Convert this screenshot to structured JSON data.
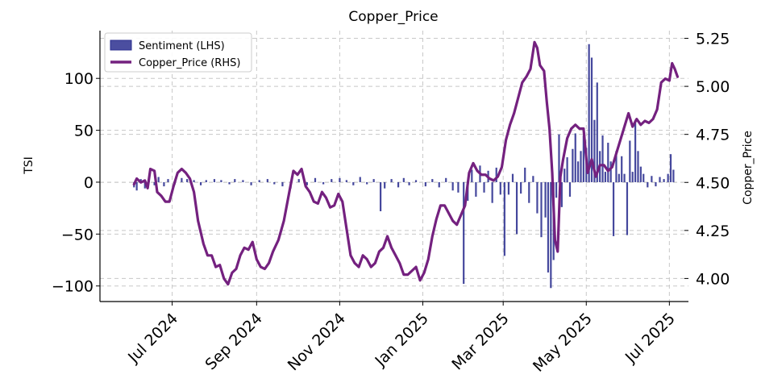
{
  "chart_data": {
    "type": "bar+line",
    "title": "Copper_Price",
    "ylabel_left": "TSI",
    "ylabel_right": "Copper_Price",
    "x_ticks": [
      "Jul 2024",
      "Sep 2024",
      "Nov 2024",
      "Jan 2025",
      "Mar 2025",
      "May 2025",
      "Jul 2025"
    ],
    "x_tick_dates": [
      "2024-07-01",
      "2024-09-01",
      "2024-11-01",
      "2025-01-01",
      "2025-03-01",
      "2025-05-01",
      "2025-07-01"
    ],
    "x_range": [
      "2024-05-09",
      "2025-07-15"
    ],
    "y_left_ticks": [
      100,
      50,
      0,
      -50,
      -100
    ],
    "y_left_tick_labels": [
      "100",
      "50",
      "0",
      "−50",
      "−100"
    ],
    "y_left_range": [
      -115,
      146
    ],
    "y_right_ticks": [
      5.25,
      5.0,
      4.75,
      4.5,
      4.25,
      4.0
    ],
    "y_right_tick_labels": [
      "5.25",
      "5.00",
      "4.75",
      "4.50",
      "4.25",
      "4.00"
    ],
    "y_right_range": [
      3.88,
      5.29
    ],
    "grid": true,
    "legend_position": "top-left",
    "colors": {
      "sentiment": "#2b2f8f",
      "copper": "#74217f",
      "grid": "#c8c8c8"
    },
    "series": [
      {
        "name": "Sentiment (LHS)",
        "kind": "bar",
        "axis": "left",
        "points": [
          [
            "2024-06-03",
            -5
          ],
          [
            "2024-06-05",
            -8
          ],
          [
            "2024-06-08",
            3
          ],
          [
            "2024-06-11",
            -6
          ],
          [
            "2024-06-14",
            4
          ],
          [
            "2024-06-18",
            -3
          ],
          [
            "2024-06-21",
            5
          ],
          [
            "2024-06-25",
            -4
          ],
          [
            "2024-06-28",
            3
          ],
          [
            "2024-07-03",
            -2
          ],
          [
            "2024-07-08",
            4
          ],
          [
            "2024-07-12",
            3
          ],
          [
            "2024-07-17",
            2
          ],
          [
            "2024-07-22",
            -3
          ],
          [
            "2024-07-26",
            2
          ],
          [
            "2024-08-01",
            3
          ],
          [
            "2024-08-06",
            2
          ],
          [
            "2024-08-12",
            -2
          ],
          [
            "2024-08-16",
            3
          ],
          [
            "2024-08-22",
            2
          ],
          [
            "2024-08-28",
            -3
          ],
          [
            "2024-09-03",
            2
          ],
          [
            "2024-09-09",
            3
          ],
          [
            "2024-09-14",
            -2
          ],
          [
            "2024-09-20",
            -4
          ],
          [
            "2024-09-26",
            -6
          ],
          [
            "2024-10-02",
            3
          ],
          [
            "2024-10-08",
            -3
          ],
          [
            "2024-10-14",
            4
          ],
          [
            "2024-10-20",
            -2
          ],
          [
            "2024-10-26",
            3
          ],
          [
            "2024-11-01",
            4
          ],
          [
            "2024-11-06",
            2
          ],
          [
            "2024-11-11",
            -3
          ],
          [
            "2024-11-16",
            5
          ],
          [
            "2024-11-21",
            -2
          ],
          [
            "2024-11-26",
            3
          ],
          [
            "2024-12-01",
            -28
          ],
          [
            "2024-12-04",
            -6
          ],
          [
            "2024-12-09",
            3
          ],
          [
            "2024-12-14",
            -5
          ],
          [
            "2024-12-18",
            4
          ],
          [
            "2024-12-22",
            -3
          ],
          [
            "2024-12-27",
            2
          ],
          [
            "2025-01-03",
            -4
          ],
          [
            "2025-01-08",
            3
          ],
          [
            "2025-01-13",
            -5
          ],
          [
            "2025-01-18",
            4
          ],
          [
            "2025-01-23",
            -8
          ],
          [
            "2025-01-27",
            -10
          ],
          [
            "2025-01-31",
            -98
          ],
          [
            "2025-02-03",
            -18
          ],
          [
            "2025-02-06",
            12
          ],
          [
            "2025-02-09",
            -14
          ],
          [
            "2025-02-12",
            16
          ],
          [
            "2025-02-15",
            -10
          ],
          [
            "2025-02-18",
            11
          ],
          [
            "2025-02-21",
            -20
          ],
          [
            "2025-02-24",
            14
          ],
          [
            "2025-02-27",
            -12
          ],
          [
            "2025-03-02",
            -71
          ],
          [
            "2025-03-05",
            -12
          ],
          [
            "2025-03-08",
            8
          ],
          [
            "2025-03-11",
            -50
          ],
          [
            "2025-03-14",
            -11
          ],
          [
            "2025-03-17",
            14
          ],
          [
            "2025-03-20",
            -20
          ],
          [
            "2025-03-23",
            6
          ],
          [
            "2025-03-26",
            -30
          ],
          [
            "2025-03-29",
            -53
          ],
          [
            "2025-04-01",
            -34
          ],
          [
            "2025-04-03",
            -87
          ],
          [
            "2025-04-05",
            -102
          ],
          [
            "2025-04-07",
            -75
          ],
          [
            "2025-04-09",
            -15
          ],
          [
            "2025-04-11",
            46
          ],
          [
            "2025-04-13",
            -24
          ],
          [
            "2025-04-15",
            13
          ],
          [
            "2025-04-17",
            24
          ],
          [
            "2025-04-19",
            -14
          ],
          [
            "2025-04-21",
            32
          ],
          [
            "2025-04-23",
            47
          ],
          [
            "2025-04-25",
            20
          ],
          [
            "2025-04-27",
            30
          ],
          [
            "2025-04-29",
            45
          ],
          [
            "2025-05-01",
            33
          ],
          [
            "2025-05-03",
            133
          ],
          [
            "2025-05-05",
            120
          ],
          [
            "2025-05-07",
            60
          ],
          [
            "2025-05-09",
            96
          ],
          [
            "2025-05-11",
            30
          ],
          [
            "2025-05-13",
            45
          ],
          [
            "2025-05-15",
            10
          ],
          [
            "2025-05-17",
            38
          ],
          [
            "2025-05-19",
            20
          ],
          [
            "2025-05-21",
            -52
          ],
          [
            "2025-05-23",
            30
          ],
          [
            "2025-05-25",
            8
          ],
          [
            "2025-05-27",
            25
          ],
          [
            "2025-05-29",
            8
          ],
          [
            "2025-05-31",
            -51
          ],
          [
            "2025-06-02",
            40
          ],
          [
            "2025-06-04",
            10
          ],
          [
            "2025-06-06",
            60
          ],
          [
            "2025-06-08",
            30
          ],
          [
            "2025-06-10",
            15
          ],
          [
            "2025-06-12",
            8
          ],
          [
            "2025-06-15",
            -5
          ],
          [
            "2025-06-18",
            6
          ],
          [
            "2025-06-21",
            -4
          ],
          [
            "2025-06-24",
            5
          ],
          [
            "2025-06-27",
            3
          ],
          [
            "2025-06-30",
            8
          ],
          [
            "2025-07-02",
            27
          ],
          [
            "2025-07-04",
            12
          ]
        ]
      },
      {
        "name": "Copper_Price (RHS)",
        "kind": "line",
        "axis": "right",
        "points": [
          [
            "2024-06-03",
            4.49
          ],
          [
            "2024-06-05",
            4.52
          ],
          [
            "2024-06-08",
            4.5
          ],
          [
            "2024-06-11",
            4.51
          ],
          [
            "2024-06-13",
            4.47
          ],
          [
            "2024-06-15",
            4.57
          ],
          [
            "2024-06-18",
            4.56
          ],
          [
            "2024-06-20",
            4.45
          ],
          [
            "2024-06-23",
            4.43
          ],
          [
            "2024-06-26",
            4.4
          ],
          [
            "2024-06-29",
            4.4
          ],
          [
            "2024-07-02",
            4.48
          ],
          [
            "2024-07-05",
            4.55
          ],
          [
            "2024-07-08",
            4.57
          ],
          [
            "2024-07-11",
            4.55
          ],
          [
            "2024-07-14",
            4.52
          ],
          [
            "2024-07-17",
            4.45
          ],
          [
            "2024-07-20",
            4.3
          ],
          [
            "2024-07-24",
            4.18
          ],
          [
            "2024-07-27",
            4.12
          ],
          [
            "2024-07-30",
            4.12
          ],
          [
            "2024-08-02",
            4.06
          ],
          [
            "2024-08-05",
            4.07
          ],
          [
            "2024-08-08",
            4.0
          ],
          [
            "2024-08-11",
            3.97
          ],
          [
            "2024-08-14",
            4.03
          ],
          [
            "2024-08-17",
            4.05
          ],
          [
            "2024-08-20",
            4.12
          ],
          [
            "2024-08-23",
            4.16
          ],
          [
            "2024-08-26",
            4.15
          ],
          [
            "2024-08-29",
            4.19
          ],
          [
            "2024-09-01",
            4.1
          ],
          [
            "2024-09-04",
            4.06
          ],
          [
            "2024-09-07",
            4.05
          ],
          [
            "2024-09-10",
            4.08
          ],
          [
            "2024-09-13",
            4.14
          ],
          [
            "2024-09-17",
            4.2
          ],
          [
            "2024-09-21",
            4.3
          ],
          [
            "2024-09-25",
            4.45
          ],
          [
            "2024-09-28",
            4.56
          ],
          [
            "2024-10-01",
            4.54
          ],
          [
            "2024-10-04",
            4.57
          ],
          [
            "2024-10-07",
            4.48
          ],
          [
            "2024-10-10",
            4.45
          ],
          [
            "2024-10-13",
            4.4
          ],
          [
            "2024-10-16",
            4.39
          ],
          [
            "2024-10-19",
            4.45
          ],
          [
            "2024-10-22",
            4.42
          ],
          [
            "2024-10-25",
            4.37
          ],
          [
            "2024-10-28",
            4.38
          ],
          [
            "2024-10-31",
            4.44
          ],
          [
            "2024-11-03",
            4.4
          ],
          [
            "2024-11-06",
            4.26
          ],
          [
            "2024-11-09",
            4.12
          ],
          [
            "2024-11-12",
            4.08
          ],
          [
            "2024-11-15",
            4.06
          ],
          [
            "2024-11-18",
            4.12
          ],
          [
            "2024-11-21",
            4.1
          ],
          [
            "2024-11-24",
            4.06
          ],
          [
            "2024-11-27",
            4.08
          ],
          [
            "2024-11-30",
            4.14
          ],
          [
            "2024-12-03",
            4.16
          ],
          [
            "2024-12-06",
            4.22
          ],
          [
            "2024-12-09",
            4.16
          ],
          [
            "2024-12-12",
            4.12
          ],
          [
            "2024-12-15",
            4.08
          ],
          [
            "2024-12-18",
            4.02
          ],
          [
            "2024-12-21",
            4.02
          ],
          [
            "2024-12-24",
            4.04
          ],
          [
            "2024-12-27",
            4.06
          ],
          [
            "2024-12-30",
            3.99
          ],
          [
            "2025-01-02",
            4.03
          ],
          [
            "2025-01-05",
            4.1
          ],
          [
            "2025-01-08",
            4.22
          ],
          [
            "2025-01-11",
            4.31
          ],
          [
            "2025-01-14",
            4.38
          ],
          [
            "2025-01-17",
            4.38
          ],
          [
            "2025-01-20",
            4.34
          ],
          [
            "2025-01-23",
            4.3
          ],
          [
            "2025-01-26",
            4.28
          ],
          [
            "2025-01-29",
            4.33
          ],
          [
            "2025-02-01",
            4.38
          ],
          [
            "2025-02-04",
            4.55
          ],
          [
            "2025-02-07",
            4.6
          ],
          [
            "2025-02-10",
            4.56
          ],
          [
            "2025-02-13",
            4.54
          ],
          [
            "2025-02-16",
            4.54
          ],
          [
            "2025-02-19",
            4.52
          ],
          [
            "2025-02-22",
            4.51
          ],
          [
            "2025-02-25",
            4.53
          ],
          [
            "2025-02-28",
            4.58
          ],
          [
            "2025-03-03",
            4.72
          ],
          [
            "2025-03-06",
            4.8
          ],
          [
            "2025-03-09",
            4.86
          ],
          [
            "2025-03-12",
            4.94
          ],
          [
            "2025-03-15",
            5.02
          ],
          [
            "2025-03-18",
            5.05
          ],
          [
            "2025-03-21",
            5.09
          ],
          [
            "2025-03-24",
            5.23
          ],
          [
            "2025-03-26",
            5.2
          ],
          [
            "2025-03-28",
            5.11
          ],
          [
            "2025-03-31",
            5.08
          ],
          [
            "2025-04-02",
            4.92
          ],
          [
            "2025-04-04",
            4.78
          ],
          [
            "2025-04-06",
            4.55
          ],
          [
            "2025-04-08",
            4.2
          ],
          [
            "2025-04-10",
            4.14
          ],
          [
            "2025-04-12",
            4.53
          ],
          [
            "2025-04-14",
            4.62
          ],
          [
            "2025-04-17",
            4.73
          ],
          [
            "2025-04-20",
            4.78
          ],
          [
            "2025-04-23",
            4.8
          ],
          [
            "2025-04-26",
            4.78
          ],
          [
            "2025-04-29",
            4.78
          ],
          [
            "2025-05-02",
            4.55
          ],
          [
            "2025-05-05",
            4.62
          ],
          [
            "2025-05-08",
            4.53
          ],
          [
            "2025-05-11",
            4.59
          ],
          [
            "2025-05-14",
            4.59
          ],
          [
            "2025-05-17",
            4.56
          ],
          [
            "2025-05-20",
            4.58
          ],
          [
            "2025-05-23",
            4.65
          ],
          [
            "2025-05-26",
            4.72
          ],
          [
            "2025-05-29",
            4.79
          ],
          [
            "2025-06-01",
            4.86
          ],
          [
            "2025-06-04",
            4.79
          ],
          [
            "2025-06-07",
            4.83
          ],
          [
            "2025-06-10",
            4.8
          ],
          [
            "2025-06-13",
            4.82
          ],
          [
            "2025-06-16",
            4.81
          ],
          [
            "2025-06-19",
            4.83
          ],
          [
            "2025-06-22",
            4.88
          ],
          [
            "2025-06-25",
            5.02
          ],
          [
            "2025-06-28",
            5.04
          ],
          [
            "2025-07-01",
            5.03
          ],
          [
            "2025-07-03",
            5.12
          ],
          [
            "2025-07-05",
            5.09
          ],
          [
            "2025-07-07",
            5.05
          ]
        ]
      }
    ]
  }
}
